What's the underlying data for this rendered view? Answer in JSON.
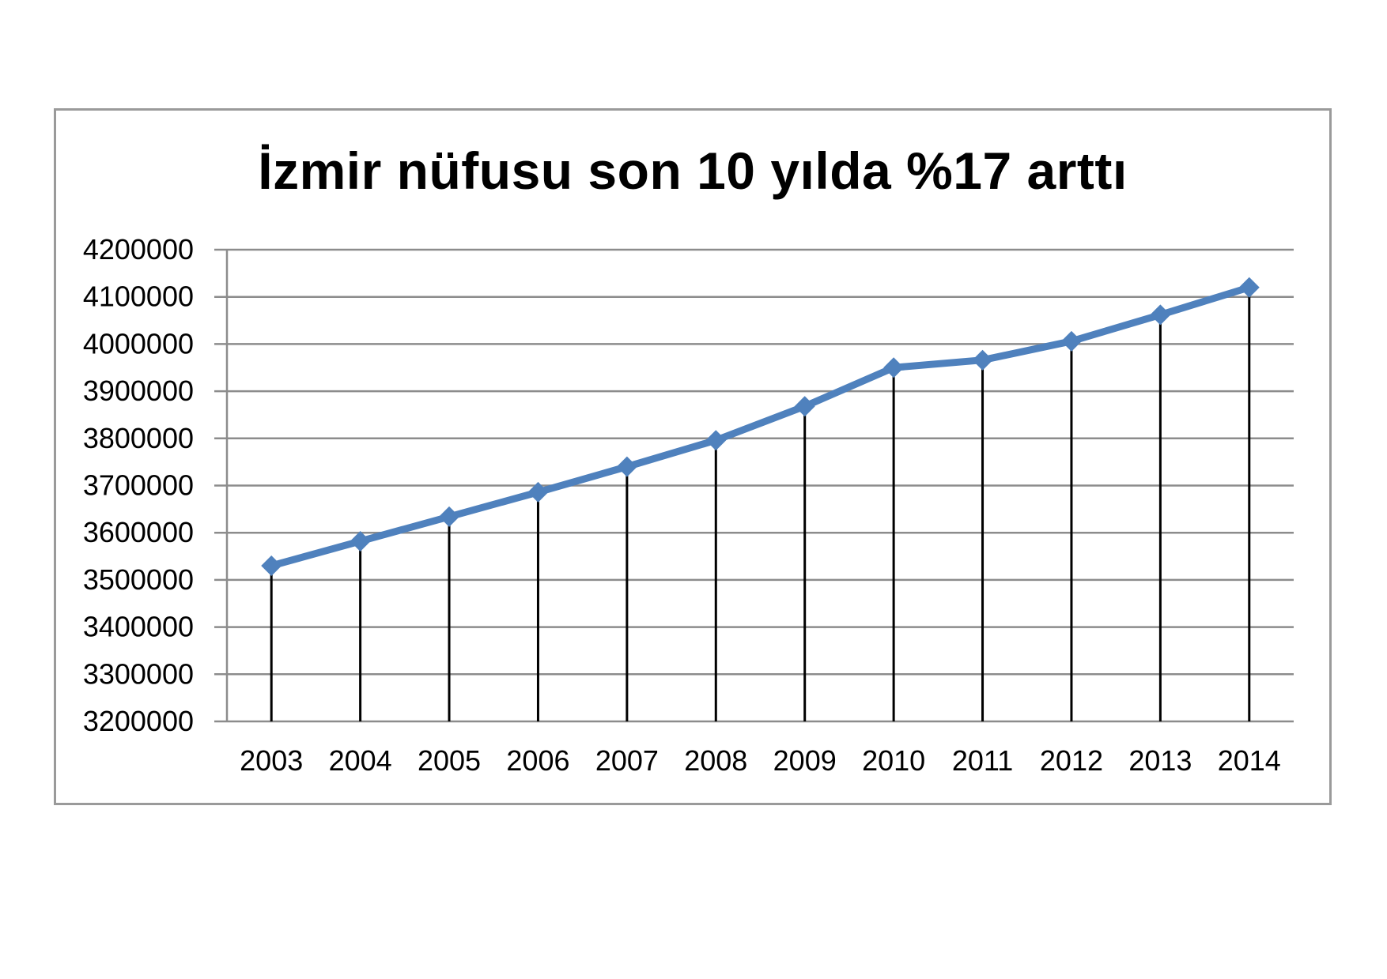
{
  "chart_data": {
    "type": "line",
    "title": "İzmir nüfusu son 10 yılda %17 arttı",
    "xlabel": "",
    "ylabel": "",
    "categories": [
      "2003",
      "2004",
      "2005",
      "2006",
      "2007",
      "2008",
      "2009",
      "2010",
      "2011",
      "2012",
      "2013",
      "2014"
    ],
    "series": [
      {
        "values": [
          3530000,
          3582000,
          3634000,
          3686000,
          3740000,
          3796000,
          3868000,
          3950000,
          3966000,
          4006000,
          4062000,
          4120000
        ],
        "color": "#4f81bd",
        "marker": "diamond"
      }
    ],
    "ylim": [
      3200000,
      4200000
    ],
    "yticks": [
      "4200000",
      "4100000",
      "4000000",
      "3900000",
      "3800000",
      "3700000",
      "3600000",
      "3500000",
      "3400000",
      "3300000",
      "3200000"
    ],
    "grid": true,
    "drop_lines": true,
    "legend": "none"
  },
  "colors": {
    "series_line": "#4f81bd",
    "gridline": "#8c8c8c",
    "drop_line": "#000000",
    "frame": "#9a9a9a"
  }
}
